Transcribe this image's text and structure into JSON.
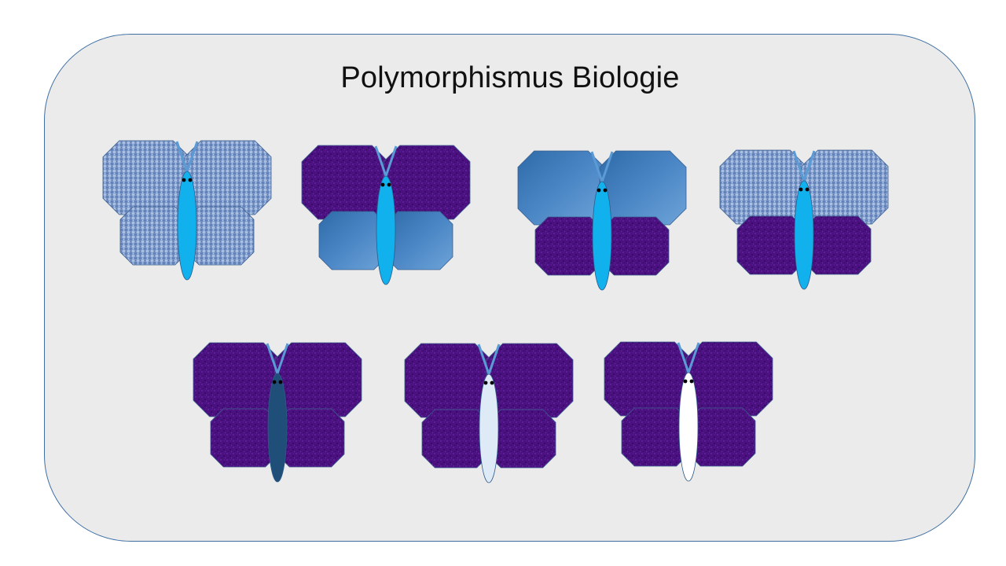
{
  "slide": {
    "title": "Polymorphismus Biologie"
  },
  "colors": {
    "panel_background": "#ebebeb",
    "panel_border": "#3d6fa3",
    "body_bright_blue": "#11b1ee",
    "body_dark_navy": "#1f4e78",
    "body_pale_blue": "#dfeaf7",
    "body_white": "#ffffff",
    "antenna": "#5b9bd5",
    "wing_purple": "#4b1180",
    "wing_steel_blue": "#4a86c5",
    "wing_denim_texture": "#7f9ccf"
  },
  "butterflies": [
    {
      "id": "butterfly-1",
      "upper_wings": "denim",
      "lower_wings": "denim",
      "body": "bright-blue"
    },
    {
      "id": "butterfly-2",
      "upper_wings": "purple",
      "lower_wings": "steel-blue",
      "body": "bright-blue"
    },
    {
      "id": "butterfly-3",
      "upper_wings": "steel-blue",
      "lower_wings": "purple",
      "body": "bright-blue"
    },
    {
      "id": "butterfly-4",
      "upper_wings": "denim",
      "lower_wings": "purple",
      "body": "bright-blue"
    },
    {
      "id": "butterfly-5",
      "upper_wings": "purple",
      "lower_wings": "purple",
      "body": "dark-navy"
    },
    {
      "id": "butterfly-6",
      "upper_wings": "purple",
      "lower_wings": "purple",
      "body": "pale-blue"
    },
    {
      "id": "butterfly-7",
      "upper_wings": "purple",
      "lower_wings": "purple",
      "body": "white"
    }
  ]
}
